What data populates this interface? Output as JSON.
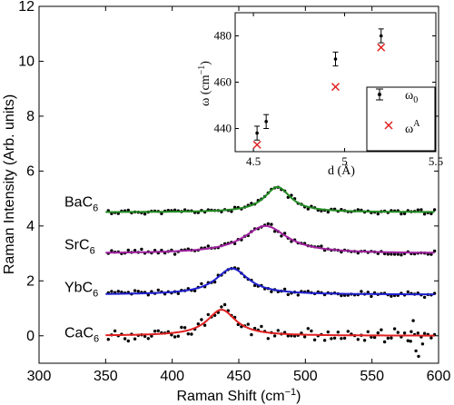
{
  "chart_data": [
    {
      "type": "scatter",
      "id": "main",
      "xlabel_text": "Raman Shift (cm",
      "xlabel_sup": "−1",
      "xlabel_tail": ")",
      "ylabel": "Raman Intensity (Arb. units)",
      "xlim": [
        300,
        600
      ],
      "ylim": [
        -1,
        12
      ],
      "xticks": [
        "300",
        "350",
        "400",
        "450",
        "500",
        "550",
        "600"
      ],
      "xtick_values": [
        300,
        350,
        400,
        450,
        500,
        550,
        600
      ],
      "yticks": [
        "0",
        "2",
        "4",
        "6",
        "8",
        "10",
        "12"
      ],
      "ytick_values": [
        0,
        2,
        4,
        6,
        8,
        10,
        12
      ],
      "grid": false,
      "series": [
        {
          "name": "BaC",
          "sub": "6",
          "label_y": 4.7,
          "offset": 4.5,
          "amp": 0.92,
          "center": 479,
          "width": 12,
          "color": "#228b22",
          "noise": 0.07,
          "seed": 11
        },
        {
          "name": "SrC",
          "sub": "6",
          "label_y": 3.15,
          "offset": 3.0,
          "amp": 1.0,
          "center": 470,
          "width": 20,
          "color": "#a020a0",
          "noise": 0.08,
          "seed": 23
        },
        {
          "name": "YbC",
          "sub": "6",
          "label_y": 1.6,
          "offset": 1.5,
          "amp": 0.95,
          "center": 445,
          "width": 15,
          "color": "#1f1fd0",
          "noise": 0.08,
          "seed": 37
        },
        {
          "name": "CaC",
          "sub": "6",
          "label_y": -0.05,
          "offset": 0.0,
          "amp": 0.95,
          "center": 437,
          "width": 13,
          "color": "#e02020",
          "noise": 0.18,
          "seed": 53
        }
      ]
    },
    {
      "type": "scatter",
      "id": "inset",
      "xlabel": "d (Å)",
      "ylabel_text": "ω (cm",
      "ylabel_sup": "−1",
      "ylabel_tail": ")",
      "xlim": [
        4.4,
        5.5
      ],
      "ylim": [
        430,
        490
      ],
      "xticks": [
        "4.5",
        "5",
        "5.5"
      ],
      "xtick_values": [
        4.5,
        5.0,
        5.5
      ],
      "yticks": [
        "440",
        "460",
        "480"
      ],
      "ytick_values": [
        440,
        460,
        480
      ],
      "omega0": [
        {
          "x": 4.52,
          "y": 438,
          "err": 3
        },
        {
          "x": 4.57,
          "y": 443,
          "err": 3
        },
        {
          "x": 4.95,
          "y": 470,
          "err": 3
        },
        {
          "x": 5.2,
          "y": 480,
          "err": 3
        }
      ],
      "omegaA": [
        {
          "x": 4.52,
          "y": 433
        },
        {
          "x": 4.95,
          "y": 458
        },
        {
          "x": 5.2,
          "y": 475
        }
      ],
      "legend": {
        "placement": "bottom-right",
        "omega0_label": "ω",
        "omega0_sub": "0",
        "omegaA_label": "ω",
        "omegaA_sup": "A",
        "omegaA_color": "#e02020"
      }
    }
  ]
}
